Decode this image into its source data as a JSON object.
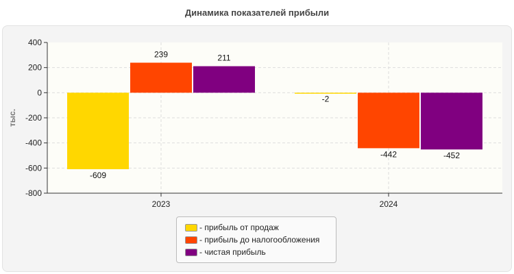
{
  "chart_data": {
    "type": "bar",
    "title": "Динамика показателей прибыли",
    "ylabel": "тыс.",
    "xlabel": "",
    "ylim": [
      -800,
      400
    ],
    "yticks": [
      400,
      200,
      0,
      -200,
      -400,
      -600,
      -800
    ],
    "categories": [
      "2023",
      "2024"
    ],
    "series": [
      {
        "name": "прибыль от продаж",
        "color": "#FFD700",
        "values": [
          -609,
          -2
        ]
      },
      {
        "name": "прибыль до налогообложения",
        "color": "#FF4500",
        "values": [
          239,
          -442
        ]
      },
      {
        "name": "чистая прибыль",
        "color": "#800080",
        "values": [
          211,
          -452
        ]
      }
    ],
    "grid": true,
    "legend_position": "bottom"
  }
}
